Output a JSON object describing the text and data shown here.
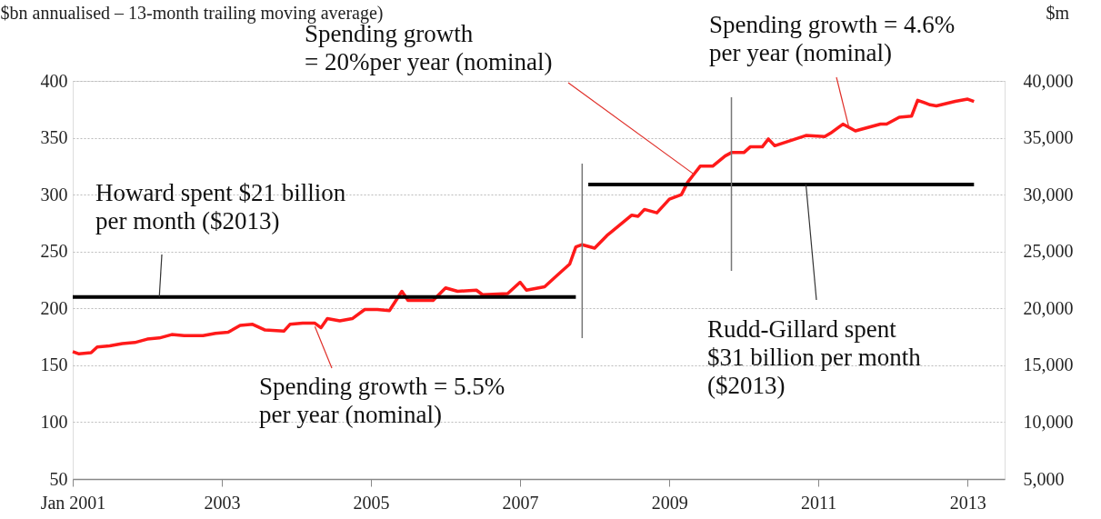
{
  "chart_data": {
    "type": "line",
    "ylabel": "$bn annualised – 13-month trailing moving average)",
    "y2label": "$m",
    "xlim": [
      "2001-01",
      "2013-07"
    ],
    "xticks": [
      {
        "value": "2001-01",
        "label": "Jan 2001"
      },
      {
        "value": "2003-01",
        "label": "2003"
      },
      {
        "value": "2005-01",
        "label": "2005"
      },
      {
        "value": "2007-01",
        "label": "2007"
      },
      {
        "value": "2009-01",
        "label": "2009"
      },
      {
        "value": "2011-01",
        "label": "2011"
      },
      {
        "value": "2013-01",
        "label": "2013"
      }
    ],
    "ylim": [
      50,
      400
    ],
    "yticks": [
      50,
      100,
      150,
      200,
      250,
      300,
      350,
      400
    ],
    "y2lim": [
      5000,
      40000
    ],
    "y2ticks": [
      {
        "value": 5000,
        "label": "5,000"
      },
      {
        "value": 10000,
        "label": "10,000"
      },
      {
        "value": 15000,
        "label": "15,000"
      },
      {
        "value": 20000,
        "label": "20,000"
      },
      {
        "value": 25000,
        "label": "25,000"
      },
      {
        "value": 30000,
        "label": "30,000"
      },
      {
        "value": 35000,
        "label": "35,000"
      },
      {
        "value": 40000,
        "label": "40,000"
      }
    ],
    "grid": "y",
    "series": [
      {
        "color": "#ff1a1a",
        "x": [
          "2001-01",
          "2001-02",
          "2001-04",
          "2001-05",
          "2001-07",
          "2001-09",
          "2001-11",
          "2002-01",
          "2002-03",
          "2002-05",
          "2002-07",
          "2002-10",
          "2002-12",
          "2003-02",
          "2003-04",
          "2003-06",
          "2003-08",
          "2003-11",
          "2003-12",
          "2004-02",
          "2004-04",
          "2004-05",
          "2004-06",
          "2004-08",
          "2004-10",
          "2004-12",
          "2005-02",
          "2005-04",
          "2005-06",
          "2005-07",
          "2005-11",
          "2006-01",
          "2006-03",
          "2006-06",
          "2006-07",
          "2006-11",
          "2007-01",
          "2007-02",
          "2007-05",
          "2007-07",
          "2007-09",
          "2007-10",
          "2007-11",
          "2008-01",
          "2008-03",
          "2008-07",
          "2008-08",
          "2008-09",
          "2008-11",
          "2009-01",
          "2009-03",
          "2009-04",
          "2009-06",
          "2009-08",
          "2009-10",
          "2009-11",
          "2010-01",
          "2010-02",
          "2010-04",
          "2010-05",
          "2010-06",
          "2010-11",
          "2011-02",
          "2011-03",
          "2011-05",
          "2011-07",
          "2011-11",
          "2011-12",
          "2012-02",
          "2012-04",
          "2012-05",
          "2012-07",
          "2012-08",
          "2012-11",
          "2013-01",
          "2013-02"
        ],
        "values": [
          162,
          160,
          161,
          166,
          167,
          169,
          170,
          173,
          174,
          177,
          176,
          176,
          178,
          179,
          185,
          186,
          181,
          180,
          186,
          187,
          187,
          183,
          191,
          189,
          191,
          199,
          199,
          198,
          215,
          207,
          207,
          218,
          215,
          216,
          212,
          213,
          223,
          216,
          219,
          229,
          239,
          254,
          256,
          253,
          264,
          282,
          281,
          287,
          284,
          296,
          300,
          311,
          325,
          325,
          334,
          337,
          337,
          342,
          342,
          349,
          343,
          352,
          351,
          354,
          362,
          356,
          362,
          362,
          368,
          369,
          383,
          379,
          378,
          382,
          384,
          382
        ]
      },
      {
        "color": "#000000",
        "x": [
          "2001-01",
          "2007-10"
        ],
        "values": [
          210,
          210
        ]
      },
      {
        "color": "#000000",
        "x": [
          "2007-12",
          "2013-02"
        ],
        "values": [
          309,
          309
        ]
      }
    ],
    "ref_lines": [
      {
        "axis": "x",
        "value": "2007-11",
        "color": "#777777"
      },
      {
        "axis": "x",
        "value": "2009-11",
        "color": "#777777"
      }
    ],
    "annotations": [
      {
        "text": "Spending growth\n= 20%per year (nominal)",
        "x": "2009-05",
        "y": 318
      },
      {
        "text": "Spending growth = 4.6%\nper year (nominal)",
        "x": "2011-06",
        "y": 358
      },
      {
        "text": "Howard spent $21 billion\nper month ($2013)",
        "x": "2002-03",
        "y": 210
      },
      {
        "text": "Spending growth = 5.5%\nper year (nominal)",
        "x": "2004-04",
        "y": 184
      },
      {
        "text": "Rudd-Gillard spent\n$31 billion per month\n($2013)",
        "x": "2010-11",
        "y": 309
      }
    ]
  }
}
